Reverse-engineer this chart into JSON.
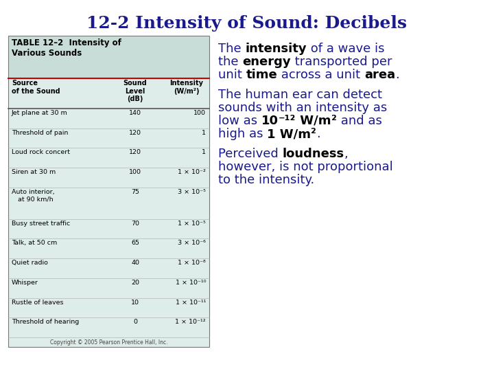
{
  "title": "12-2 Intensity of Sound: Decibels",
  "title_color": "#1a1a8c",
  "background_color": "#ffffff",
  "table_header_bg": "#c8ddd8",
  "table_body_bg": "#deecea",
  "table_rows": [
    [
      "Jet plane at 30 m",
      "140",
      "100"
    ],
    [
      "Threshold of pain",
      "120",
      "1"
    ],
    [
      "Loud rock concert",
      "120",
      "1"
    ],
    [
      "Siren at 30 m",
      "100",
      "1 × 10⁻²"
    ],
    [
      "Auto interior,\n   at 90 km/h",
      "75",
      "3 × 10⁻⁵"
    ],
    [
      "Busy street traffic",
      "70",
      "1 × 10⁻⁵"
    ],
    [
      "Talk, at 50 cm",
      "65",
      "3 × 10⁻⁶"
    ],
    [
      "Quiet radio",
      "40",
      "1 × 10⁻⁸"
    ],
    [
      "Whisper",
      "20",
      "1 × 10⁻¹⁰"
    ],
    [
      "Rustle of leaves",
      "10",
      "1 × 10⁻¹¹"
    ],
    [
      "Threshold of hearing",
      "0",
      "1 × 10⁻¹²"
    ]
  ],
  "copyright": "Copyright © 2005 Pearson Prentice Hall, Inc.",
  "blue": "#1a1a8c",
  "black": "#000000",
  "red_line": "#cc0000"
}
